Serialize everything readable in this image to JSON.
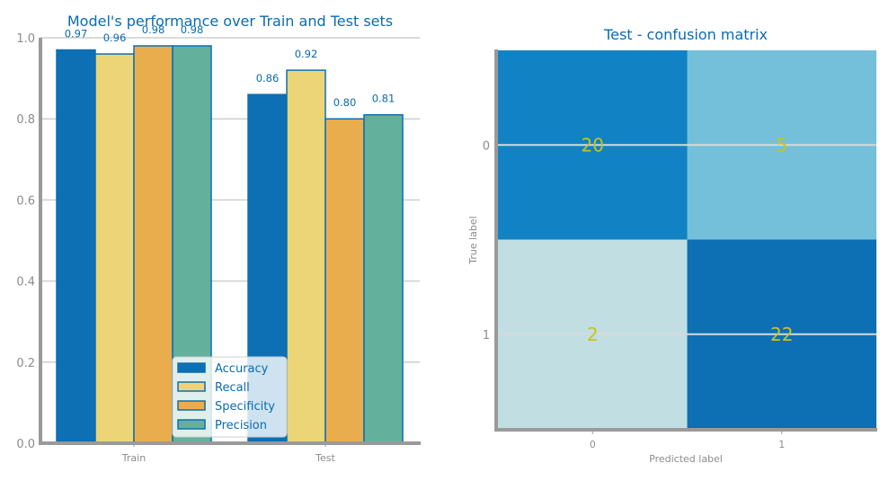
{
  "chart_data": [
    {
      "type": "bar",
      "title": "Model's performance over Train and Test sets",
      "categories": [
        "Train",
        "Test"
      ],
      "series": [
        {
          "name": "Accuracy",
          "values": [
            0.97,
            0.86
          ],
          "value_labels": [
            "0.97",
            "0.86"
          ],
          "color": "#0d6fb4"
        },
        {
          "name": "Recall",
          "values": [
            0.96,
            0.92
          ],
          "value_labels": [
            "0.96",
            "0.92"
          ],
          "color": "#ecd577"
        },
        {
          "name": "Specificity",
          "values": [
            0.98,
            0.8
          ],
          "value_labels": [
            "0.98",
            "0.80"
          ],
          "color": "#e9ad4d"
        },
        {
          "name": "Precision",
          "values": [
            0.98,
            0.81
          ],
          "value_labels": [
            "0.98",
            "0.81"
          ],
          "color": "#63b19c"
        }
      ],
      "ylim": [
        0,
        1.0
      ],
      "yticks": [
        "0.0",
        "0.2",
        "0.4",
        "0.6",
        "0.8",
        "1.0"
      ],
      "xlabel": "",
      "ylabel": "",
      "grid": "horizontal",
      "legend": "bottom-right"
    },
    {
      "type": "heatmap",
      "title": "Test - confusion matrix",
      "xlabel": "Predicted label",
      "ylabel": "True label",
      "x_ticks": [
        "0",
        "1"
      ],
      "y_ticks": [
        "0",
        "1"
      ],
      "matrix": [
        [
          20,
          5
        ],
        [
          2,
          22
        ]
      ],
      "matrix_labels": [
        [
          "20",
          "5"
        ],
        [
          "2",
          "22"
        ]
      ],
      "colors": [
        [
          "#1183c4",
          "#74c0db"
        ],
        [
          "#c1dfe3",
          "#0d6fb4"
        ]
      ]
    }
  ]
}
